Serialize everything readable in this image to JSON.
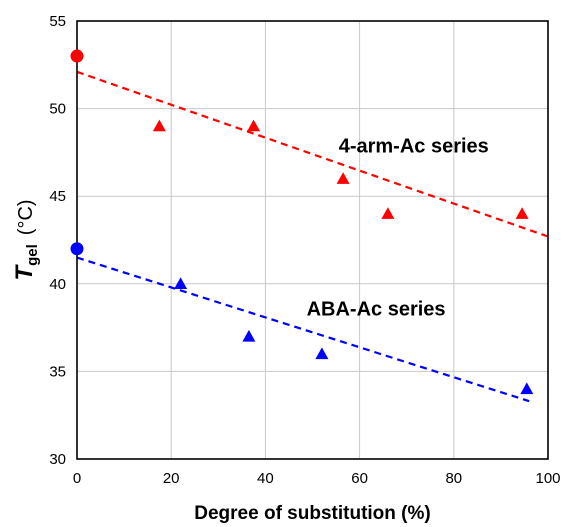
{
  "chart_data": {
    "type": "scatter",
    "title": "",
    "xlabel": "Degree of substitution (%)",
    "ylabel": {
      "symbol": "T",
      "subscript": "gel",
      "unit": "(°C)"
    },
    "xlim": [
      0,
      100
    ],
    "ylim": [
      30,
      55
    ],
    "xticks": [
      0,
      20,
      40,
      60,
      80,
      100
    ],
    "yticks": [
      30,
      35,
      40,
      45,
      50,
      55
    ],
    "grid": true,
    "legend": "none",
    "series": [
      {
        "name": "4-arm-Ac series",
        "color": "#ff0000",
        "points": [
          {
            "x": 0,
            "y": 53,
            "marker": "circle"
          },
          {
            "x": 17.5,
            "y": 49,
            "marker": "triangle"
          },
          {
            "x": 37.5,
            "y": 49,
            "marker": "triangle"
          },
          {
            "x": 56.5,
            "y": 46,
            "marker": "triangle"
          },
          {
            "x": 66,
            "y": 44,
            "marker": "triangle"
          },
          {
            "x": 94.5,
            "y": 44,
            "marker": "triangle"
          }
        ],
        "trendline": {
          "x": [
            0,
            100
          ],
          "y": [
            52.1,
            42.7
          ]
        }
      },
      {
        "name": "ABA-Ac series",
        "color": "#0000ff",
        "points": [
          {
            "x": 0,
            "y": 42,
            "marker": "circle"
          },
          {
            "x": 22,
            "y": 40,
            "marker": "triangle"
          },
          {
            "x": 36.5,
            "y": 37,
            "marker": "triangle"
          },
          {
            "x": 52,
            "y": 36,
            "marker": "triangle"
          },
          {
            "x": 95.5,
            "y": 34,
            "marker": "triangle"
          }
        ],
        "trendline": {
          "x": [
            0,
            96
          ],
          "y": [
            41.5,
            33.3
          ]
        }
      }
    ],
    "annotations": [
      {
        "text": "4-arm-Ac series",
        "x": 71.5,
        "y": 47.9
      },
      {
        "text": "ABA-Ac series",
        "x": 63.5,
        "y": 38.6
      }
    ]
  }
}
